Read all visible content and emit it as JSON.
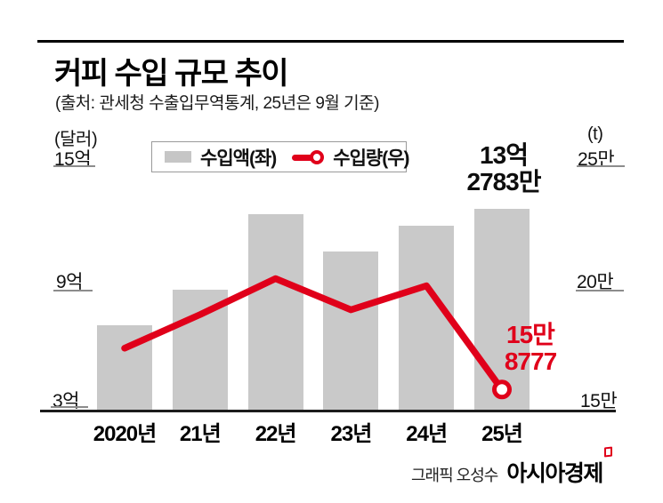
{
  "title": "커피 수입 규모 추이",
  "subtitle": "(출처: 관세청 수출입무역통계, 25년은 9월 기준)",
  "legend": {
    "bar_label": "수입액(좌)",
    "line_label": "수입량(우)"
  },
  "axes": {
    "left_unit": "(달러)",
    "left_ticks": [
      "15억",
      "9억",
      "3억"
    ],
    "right_unit": "(t)",
    "right_ticks": [
      "25만",
      "20만",
      "15만"
    ]
  },
  "annotations": {
    "bar_value_line1": "13억",
    "bar_value_line2": "2783만",
    "line_value_line1": "15만",
    "line_value_line2": "8777"
  },
  "credit": {
    "prefix": "그래픽 오성수",
    "brand": "아시아경제"
  },
  "colors": {
    "bar": "#c9c9c9",
    "line": "#e0001a",
    "text": "#111111",
    "tick_rule": "#8c8c8c",
    "baseline": "#1c1c1c"
  },
  "chart_data": {
    "type": "bar",
    "subtype": "bar+line dual-axis",
    "title": "커피 수입 규모 추이",
    "subtitle": "(출처: 관세청 수출입무역통계, 25년은 9월 기준)",
    "categories": [
      "2020년",
      "21년",
      "22년",
      "23년",
      "24년",
      "25년"
    ],
    "series": [
      {
        "name": "수입액(좌)",
        "type": "bar",
        "axis": "left",
        "unit": "억 달러",
        "color": "#c9c9c9",
        "values": [
          7.4,
          9.2,
          13.0,
          11.1,
          12.4,
          13.2783
        ]
      },
      {
        "name": "수입량(우)",
        "type": "line",
        "axis": "right",
        "unit": "만 t",
        "color": "#e0001a",
        "values": [
          17.6,
          19.0,
          20.5,
          19.2,
          20.2,
          15.8777
        ]
      }
    ],
    "left_axis": {
      "label": "(달러)",
      "tick_values": [
        15,
        9,
        3
      ],
      "tick_labels": [
        "15억",
        "9억",
        "3억"
      ],
      "range": [
        3,
        15
      ]
    },
    "right_axis": {
      "label": "(t)",
      "tick_values": [
        25,
        20,
        15
      ],
      "tick_labels": [
        "25만",
        "20만",
        "15만"
      ],
      "range": [
        15,
        25
      ]
    },
    "point_annotations": [
      {
        "series": "수입액(좌)",
        "category": "25년",
        "text": "13억 2783만"
      },
      {
        "series": "수입량(우)",
        "category": "25년",
        "text": "15만 8777"
      }
    ],
    "legend_position": "top",
    "grid": false
  }
}
